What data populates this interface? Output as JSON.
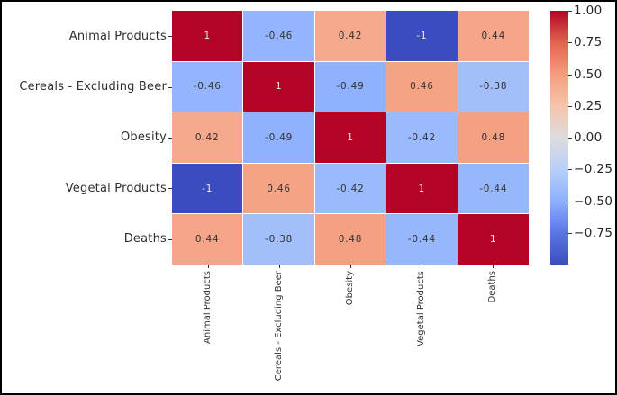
{
  "chart_data": {
    "type": "heatmap",
    "title": "",
    "categories": [
      "Animal Products",
      "Cereals - Excluding Beer",
      "Obesity",
      "Vegetal Products",
      "Deaths"
    ],
    "matrix": [
      [
        1,
        -0.46,
        0.42,
        -1,
        0.44
      ],
      [
        -0.46,
        1,
        -0.49,
        0.46,
        -0.38
      ],
      [
        0.42,
        -0.49,
        1,
        -0.42,
        0.48
      ],
      [
        -1,
        0.46,
        -0.42,
        1,
        -0.44
      ],
      [
        0.44,
        -0.38,
        0.48,
        -0.44,
        1
      ]
    ],
    "cell_labels": [
      [
        "1",
        "-0.46",
        "0.42",
        "-1",
        "0.44"
      ],
      [
        "-0.46",
        "1",
        "-0.49",
        "0.46",
        "-0.38"
      ],
      [
        "0.42",
        "-0.49",
        "1",
        "-0.42",
        "0.48"
      ],
      [
        "-1",
        "0.46",
        "-0.42",
        "1",
        "-0.44"
      ],
      [
        "0.44",
        "-0.38",
        "0.48",
        "-0.44",
        "1"
      ]
    ],
    "vmin": -1,
    "vmax": 1,
    "colormap": "coolwarm",
    "colormap_stops": [
      [
        -1.0,
        "#3b4cc0"
      ],
      [
        -0.75,
        "#5977e3"
      ],
      [
        -0.5,
        "#8db0fe"
      ],
      [
        -0.25,
        "#b8cff9"
      ],
      [
        0.0,
        "#dddddd"
      ],
      [
        0.25,
        "#f5c4ac"
      ],
      [
        0.5,
        "#f59d7e"
      ],
      [
        0.75,
        "#e0654f"
      ],
      [
        1.0,
        "#b40426"
      ]
    ],
    "colorbar": {
      "position": "right",
      "ticks": [
        {
          "label": "1.00",
          "value": 1.0
        },
        {
          "label": "0.75",
          "value": 0.75
        },
        {
          "label": "0.50",
          "value": 0.5
        },
        {
          "label": "0.25",
          "value": 0.25
        },
        {
          "label": "0.00",
          "value": 0.0
        },
        {
          "label": "−0.25",
          "value": -0.25
        },
        {
          "label": "−0.50",
          "value": -0.5
        },
        {
          "label": "−0.75",
          "value": -0.75
        }
      ]
    },
    "grid": false,
    "annotations_on": true
  },
  "colors": {
    "background": "#ffffff",
    "frame_border": "#000000",
    "cell_divider": "#ffffff",
    "annotation_dark": "#333333",
    "annotation_light": "#f7eaee",
    "axis_label": "#2e2e2e",
    "tick": "#333333"
  }
}
